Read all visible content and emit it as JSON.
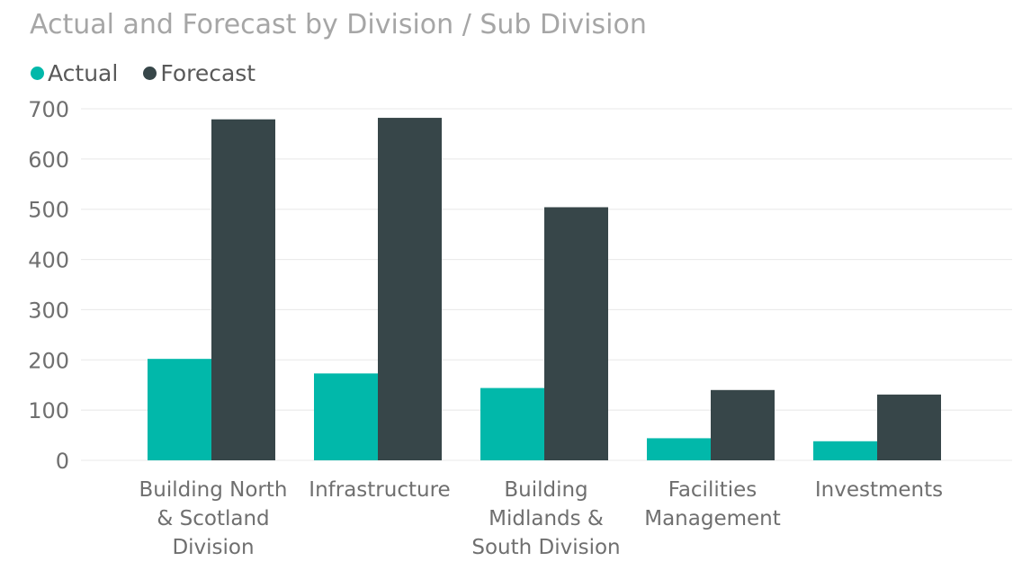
{
  "chart_data": {
    "type": "bar",
    "title": "Actual and Forecast by Division / Sub Division",
    "categories": [
      "Building North & Scotland Division",
      "Infrastructure",
      "Building Midlands & South Division",
      "Facilities Management",
      "Investments"
    ],
    "category_lines": [
      [
        "Building North",
        "& Scotland",
        "Division"
      ],
      [
        "Infrastructure"
      ],
      [
        "Building",
        "Midlands &",
        "South Division"
      ],
      [
        "Facilities",
        "Management"
      ],
      [
        "Investments"
      ]
    ],
    "series": [
      {
        "name": "Actual",
        "color": "#01b8aa",
        "values": [
          202,
          173,
          144,
          44,
          38
        ]
      },
      {
        "name": "Forecast",
        "color": "#374649",
        "values": [
          679,
          682,
          504,
          140,
          131
        ]
      }
    ],
    "ylim": [
      0,
      700
    ],
    "yticks": [
      0,
      100,
      200,
      300,
      400,
      500,
      600,
      700
    ],
    "grid": true,
    "legend_position": "top-left",
    "xlabel": "",
    "ylabel": ""
  }
}
